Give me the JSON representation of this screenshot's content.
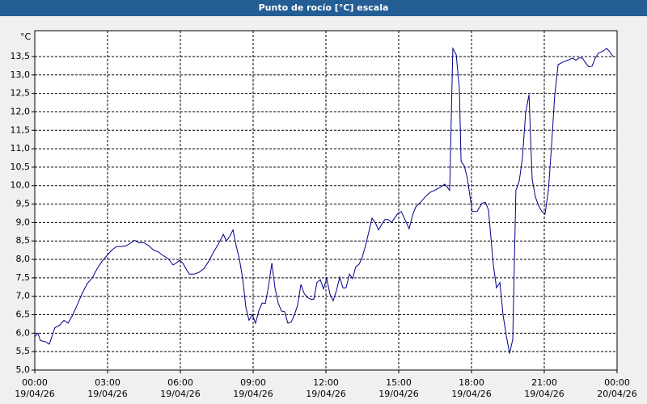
{
  "chart_data": {
    "type": "line",
    "title": "Punto de rocío [°C] escala",
    "y_unit": "°C",
    "x": [
      0,
      0.13,
      0.23,
      0.43,
      0.6,
      0.83,
      1.03,
      1.2,
      1.37,
      1.57,
      1.77,
      1.97,
      2.17,
      2.37,
      2.57,
      2.77,
      2.97,
      3.17,
      3.37,
      3.57,
      3.77,
      3.97,
      4.1,
      4.3,
      4.5,
      4.7,
      4.9,
      5.1,
      5.3,
      5.5,
      5.7,
      5.83,
      5.97,
      6.1,
      6.23,
      6.37,
      6.57,
      6.77,
      6.97,
      7.17,
      7.37,
      7.57,
      7.77,
      7.9,
      8.03,
      8.17,
      8.3,
      8.43,
      8.57,
      8.7,
      8.83,
      8.97,
      9.1,
      9.23,
      9.37,
      9.5,
      9.63,
      9.77,
      9.9,
      10.03,
      10.17,
      10.3,
      10.43,
      10.57,
      10.7,
      10.83,
      10.97,
      11.1,
      11.23,
      11.37,
      11.5,
      11.63,
      11.77,
      11.9,
      12.03,
      12.17,
      12.3,
      12.43,
      12.57,
      12.7,
      12.83,
      12.97,
      13.1,
      13.23,
      13.37,
      13.5,
      13.63,
      13.77,
      13.9,
      14.03,
      14.17,
      14.3,
      14.43,
      14.57,
      14.7,
      14.83,
      14.97,
      15.1,
      15.23,
      15.43,
      15.57,
      15.7,
      15.9,
      16.1,
      16.3,
      16.5,
      16.7,
      16.9,
      17.1,
      17.23,
      17.37,
      17.5,
      17.57,
      17.7,
      17.83,
      17.9,
      18.03,
      18.23,
      18.43,
      18.57,
      18.7,
      18.9,
      19.03,
      19.17,
      19.3,
      19.43,
      19.57,
      19.7,
      19.83,
      19.97,
      20.1,
      20.23,
      20.37,
      20.5,
      20.63,
      20.77,
      20.9,
      21.03,
      21.17,
      21.3,
      21.43,
      21.57,
      21.77,
      21.97,
      22.17,
      22.3,
      22.43,
      22.57,
      22.7,
      22.83,
      22.97,
      23.1,
      23.23,
      23.43,
      23.57,
      23.7,
      23.83
    ],
    "series": [
      {
        "name": "Punto de rocío",
        "color": "#00008b",
        "values": [
          5.9,
          6.0,
          5.8,
          5.77,
          5.7,
          6.15,
          6.22,
          6.35,
          6.27,
          6.5,
          6.8,
          7.1,
          7.35,
          7.5,
          7.75,
          7.95,
          8.1,
          8.25,
          8.35,
          8.35,
          8.37,
          8.45,
          8.52,
          8.45,
          8.45,
          8.37,
          8.25,
          8.2,
          8.1,
          8.02,
          7.85,
          7.9,
          7.98,
          7.9,
          7.75,
          7.6,
          7.6,
          7.65,
          7.75,
          7.95,
          8.2,
          8.42,
          8.68,
          8.5,
          8.62,
          8.8,
          8.37,
          8.02,
          7.48,
          6.7,
          6.35,
          6.5,
          6.27,
          6.6,
          6.82,
          6.8,
          7.25,
          7.9,
          7.23,
          6.82,
          6.6,
          6.58,
          6.27,
          6.3,
          6.5,
          6.75,
          7.32,
          7.08,
          6.97,
          6.92,
          6.92,
          7.37,
          7.45,
          7.2,
          7.48,
          7.05,
          6.88,
          7.15,
          7.52,
          7.23,
          7.23,
          7.6,
          7.48,
          7.8,
          7.87,
          8.07,
          8.37,
          8.75,
          9.12,
          9.0,
          8.8,
          8.95,
          9.08,
          9.08,
          9.0,
          9.12,
          9.25,
          9.3,
          9.12,
          8.83,
          9.2,
          9.42,
          9.55,
          9.7,
          9.82,
          9.88,
          9.95,
          10.04,
          9.87,
          13.72,
          13.55,
          12.62,
          10.65,
          10.54,
          10.2,
          9.88,
          9.3,
          9.3,
          9.52,
          9.55,
          9.34,
          7.85,
          7.23,
          7.37,
          6.5,
          5.95,
          5.45,
          5.83,
          9.87,
          10.13,
          10.76,
          11.97,
          12.47,
          10.17,
          9.7,
          9.45,
          9.3,
          9.23,
          9.88,
          11.09,
          12.45,
          13.28,
          13.35,
          13.4,
          13.46,
          13.4,
          13.46,
          13.46,
          13.33,
          13.22,
          13.24,
          13.46,
          13.59,
          13.65,
          13.72,
          13.63,
          13.5
        ]
      }
    ],
    "xlim": [
      0,
      24
    ],
    "xticks": [
      {
        "value": 0,
        "label": "00:00\n19/04/26"
      },
      {
        "value": 3,
        "label": "03:00\n19/04/26"
      },
      {
        "value": 6,
        "label": "06:00\n19/04/26"
      },
      {
        "value": 9,
        "label": "09:00\n19/04/26"
      },
      {
        "value": 12,
        "label": "12:00\n19/04/26"
      },
      {
        "value": 15,
        "label": "15:00\n19/04/26"
      },
      {
        "value": 18,
        "label": "18:00\n19/04/26"
      },
      {
        "value": 21,
        "label": "21:00\n19/04/26"
      },
      {
        "value": 24,
        "label": "00:00\n20/04/26"
      }
    ],
    "ylim": [
      5,
      14.2
    ],
    "yticks": [
      {
        "value": 5,
        "label": "5,0"
      },
      {
        "value": 5.5,
        "label": "5,5"
      },
      {
        "value": 6,
        "label": "6,0"
      },
      {
        "value": 6.5,
        "label": "6,5"
      },
      {
        "value": 7,
        "label": "7,0"
      },
      {
        "value": 7.5,
        "label": "7,5"
      },
      {
        "value": 8,
        "label": "8,0"
      },
      {
        "value": 8.5,
        "label": "8,5"
      },
      {
        "value": 9,
        "label": "9,0"
      },
      {
        "value": 9.5,
        "label": "9,5"
      },
      {
        "value": 10,
        "label": "10,0"
      },
      {
        "value": 10.5,
        "label": "10,5"
      },
      {
        "value": 11,
        "label": "11,0"
      },
      {
        "value": 11.5,
        "label": "11,5"
      },
      {
        "value": 12,
        "label": "12,0"
      },
      {
        "value": 12.5,
        "label": "12,5"
      },
      {
        "value": 13,
        "label": "13,0"
      },
      {
        "value": 13.5,
        "label": "13,5"
      }
    ],
    "grid": true
  }
}
